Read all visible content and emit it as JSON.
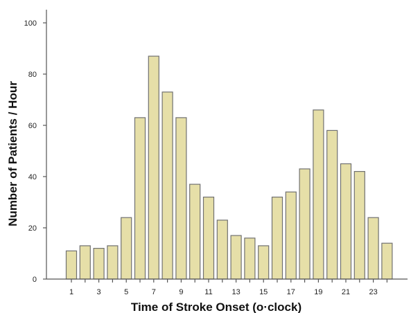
{
  "chart_data": {
    "type": "bar",
    "title": "",
    "xlabel": "Time of Stroke Onset (o·clock)",
    "ylabel": "Number of Patients / Hour",
    "ylim": [
      0,
      100
    ],
    "yticks": [
      "0",
      "20",
      "40",
      "60",
      "80",
      "100"
    ],
    "categories": [
      "1",
      "2",
      "3",
      "4",
      "5",
      "6",
      "7",
      "8",
      "9",
      "10",
      "11",
      "12",
      "13",
      "14",
      "15",
      "16",
      "17",
      "18",
      "19",
      "20",
      "21",
      "22",
      "23",
      "24"
    ],
    "x_tick_labels": [
      "1",
      "3",
      "5",
      "7",
      "9",
      "11",
      "13",
      "15",
      "17",
      "19",
      "21",
      "23"
    ],
    "values": [
      11,
      13,
      12,
      13,
      24,
      63,
      87,
      73,
      63,
      37,
      32,
      23,
      17,
      16,
      13,
      32,
      34,
      43,
      66,
      58,
      45,
      42,
      24,
      14
    ],
    "grid": false,
    "legend": "none",
    "bar_color": "#e6dfa8",
    "bar_edge_color": "#707070"
  }
}
